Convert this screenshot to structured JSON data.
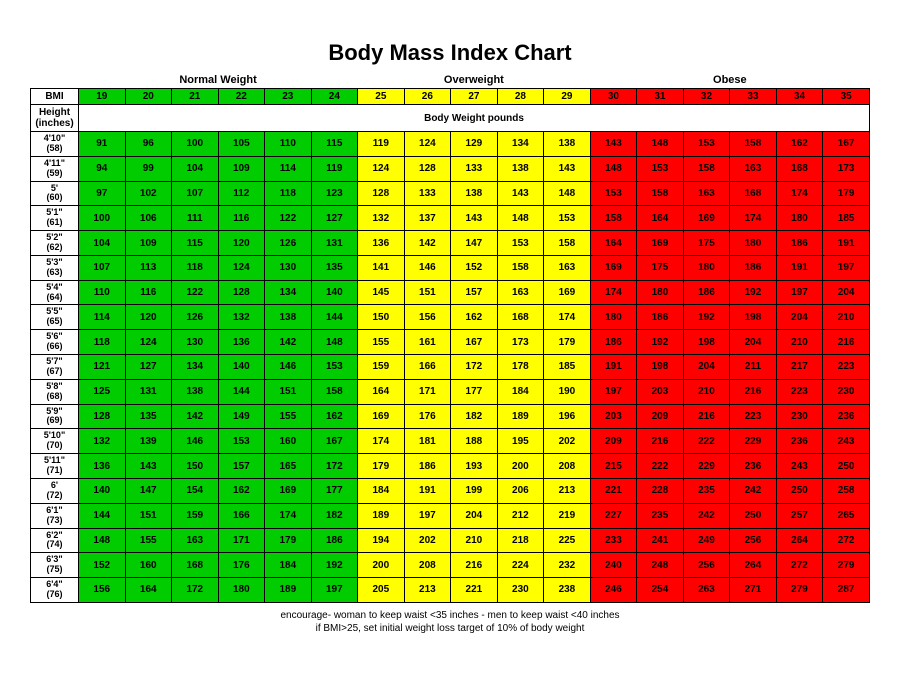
{
  "title": "Body Mass Index Chart",
  "subtitle": "Body Weight pounds",
  "row_label_header_line1": "BMI",
  "row_label_header_line2": "Height (inches)",
  "footer_lines": [
    "encourage- woman to keep waist <35 inches - men to keep waist <40 inches",
    "if BMI>25, set initial weight loss target of 10% of body weight"
  ],
  "colors": {
    "normal": "#00cc00",
    "overweight": "#ffff00",
    "obese": "#ff0000",
    "border": "#000000",
    "background": "#ffffff"
  },
  "fontsize": {
    "title": 22,
    "category": 11,
    "cell": 10,
    "rowhdr": 9,
    "footer": 10
  },
  "categories": [
    {
      "label": "Normal Weight",
      "span": 6,
      "color_key": "normal"
    },
    {
      "label": "Overweight",
      "span": 5,
      "color_key": "overweight"
    },
    {
      "label": "Obese",
      "span": 6,
      "color_key": "obese"
    }
  ],
  "bmi_columns": [
    19,
    20,
    21,
    22,
    23,
    24,
    25,
    26,
    27,
    28,
    29,
    30,
    31,
    32,
    33,
    34,
    35
  ],
  "column_color_keys": [
    "normal",
    "normal",
    "normal",
    "normal",
    "normal",
    "normal",
    "overweight",
    "overweight",
    "overweight",
    "overweight",
    "overweight",
    "obese",
    "obese",
    "obese",
    "obese",
    "obese",
    "obese"
  ],
  "rows": [
    {
      "feet_in": "4'10\"",
      "inches": 58,
      "weights": [
        91,
        96,
        100,
        105,
        110,
        115,
        119,
        124,
        129,
        134,
        138,
        143,
        148,
        153,
        158,
        162,
        167
      ]
    },
    {
      "feet_in": "4'11\"",
      "inches": 59,
      "weights": [
        94,
        99,
        104,
        109,
        114,
        119,
        124,
        128,
        133,
        138,
        143,
        148,
        153,
        158,
        163,
        168,
        173
      ]
    },
    {
      "feet_in": "5'",
      "inches": 60,
      "weights": [
        97,
        102,
        107,
        112,
        118,
        123,
        128,
        133,
        138,
        143,
        148,
        153,
        158,
        163,
        168,
        174,
        179
      ]
    },
    {
      "feet_in": "5'1\"",
      "inches": 61,
      "weights": [
        100,
        106,
        111,
        116,
        122,
        127,
        132,
        137,
        143,
        148,
        153,
        158,
        164,
        169,
        174,
        180,
        185
      ]
    },
    {
      "feet_in": "5'2\"",
      "inches": 62,
      "weights": [
        104,
        109,
        115,
        120,
        126,
        131,
        136,
        142,
        147,
        153,
        158,
        164,
        169,
        175,
        180,
        186,
        191
      ]
    },
    {
      "feet_in": "5'3\"",
      "inches": 63,
      "weights": [
        107,
        113,
        118,
        124,
        130,
        135,
        141,
        146,
        152,
        158,
        163,
        169,
        175,
        180,
        186,
        191,
        197
      ]
    },
    {
      "feet_in": "5'4\"",
      "inches": 64,
      "weights": [
        110,
        116,
        122,
        128,
        134,
        140,
        145,
        151,
        157,
        163,
        169,
        174,
        180,
        186,
        192,
        197,
        204
      ]
    },
    {
      "feet_in": "5'5\"",
      "inches": 65,
      "weights": [
        114,
        120,
        126,
        132,
        138,
        144,
        150,
        156,
        162,
        168,
        174,
        180,
        186,
        192,
        198,
        204,
        210
      ]
    },
    {
      "feet_in": "5'6\"",
      "inches": 66,
      "weights": [
        118,
        124,
        130,
        136,
        142,
        148,
        155,
        161,
        167,
        173,
        179,
        186,
        192,
        198,
        204,
        210,
        216
      ]
    },
    {
      "feet_in": "5'7\"",
      "inches": 67,
      "weights": [
        121,
        127,
        134,
        140,
        146,
        153,
        159,
        166,
        172,
        178,
        185,
        191,
        198,
        204,
        211,
        217,
        223
      ]
    },
    {
      "feet_in": "5'8\"",
      "inches": 68,
      "weights": [
        125,
        131,
        138,
        144,
        151,
        158,
        164,
        171,
        177,
        184,
        190,
        197,
        203,
        210,
        216,
        223,
        230
      ]
    },
    {
      "feet_in": "5'9\"",
      "inches": 69,
      "weights": [
        128,
        135,
        142,
        149,
        155,
        162,
        169,
        176,
        182,
        189,
        196,
        203,
        209,
        216,
        223,
        230,
        236
      ]
    },
    {
      "feet_in": "5'10\"",
      "inches": 70,
      "weights": [
        132,
        139,
        146,
        153,
        160,
        167,
        174,
        181,
        188,
        195,
        202,
        209,
        216,
        222,
        229,
        236,
        243
      ]
    },
    {
      "feet_in": "5'11\"",
      "inches": 71,
      "weights": [
        136,
        143,
        150,
        157,
        165,
        172,
        179,
        186,
        193,
        200,
        208,
        215,
        222,
        229,
        236,
        243,
        250
      ]
    },
    {
      "feet_in": "6'",
      "inches": 72,
      "weights": [
        140,
        147,
        154,
        162,
        169,
        177,
        184,
        191,
        199,
        206,
        213,
        221,
        228,
        235,
        242,
        250,
        258
      ]
    },
    {
      "feet_in": "6'1\"",
      "inches": 73,
      "weights": [
        144,
        151,
        159,
        166,
        174,
        182,
        189,
        197,
        204,
        212,
        219,
        227,
        235,
        242,
        250,
        257,
        265
      ]
    },
    {
      "feet_in": "6'2\"",
      "inches": 74,
      "weights": [
        148,
        155,
        163,
        171,
        179,
        186,
        194,
        202,
        210,
        218,
        225,
        233,
        241,
        249,
        256,
        264,
        272
      ]
    },
    {
      "feet_in": "6'3\"",
      "inches": 75,
      "weights": [
        152,
        160,
        168,
        176,
        184,
        192,
        200,
        208,
        216,
        224,
        232,
        240,
        248,
        256,
        264,
        272,
        279
      ]
    },
    {
      "feet_in": "6'4\"",
      "inches": 76,
      "weights": [
        156,
        164,
        172,
        180,
        189,
        197,
        205,
        213,
        221,
        230,
        238,
        246,
        254,
        263,
        271,
        279,
        287
      ]
    }
  ]
}
